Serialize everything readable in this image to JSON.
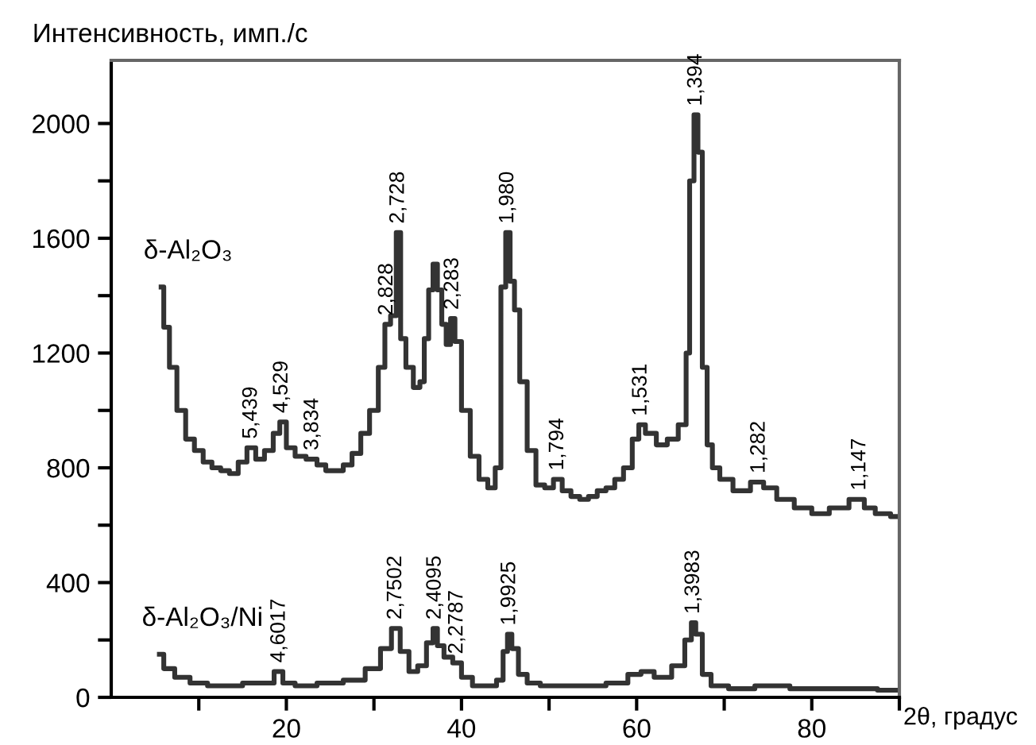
{
  "chart_data": {
    "type": "step",
    "ylabel": "Интенсивность, имп./с",
    "xlabel": "2θ, градус",
    "xlim": [
      0,
      90
    ],
    "ylim": [
      0,
      2220
    ],
    "xticks": [
      {
        "value": 10,
        "label": null
      },
      20,
      {
        "value": 30,
        "label": null
      },
      40,
      {
        "value": 50,
        "label": null
      },
      60,
      {
        "value": 70,
        "label": null
      },
      80,
      {
        "value": 90,
        "label": null
      }
    ],
    "yticks": [
      0,
      {
        "value": 200,
        "label": null
      },
      400,
      {
        "value": 600,
        "label": null
      },
      800,
      {
        "value": 1000,
        "label": null
      },
      1200,
      {
        "value": 1400,
        "label": null
      },
      1600,
      {
        "value": 1800,
        "label": null
      },
      2000
    ],
    "grid": false,
    "legend": false,
    "marker": "none",
    "line_style": "solid",
    "series": [
      {
        "name": "δ-Al₂O₃",
        "color": "#333333",
        "x": [
          5.7,
          6.3,
          7,
          8,
          9,
          10,
          11,
          12,
          13,
          14,
          15,
          16,
          17,
          18,
          19,
          19.5,
          20.5,
          21.5,
          23,
          24,
          25,
          26,
          27,
          28,
          29,
          30,
          31,
          31.5,
          32.3,
          32.8,
          33.3,
          34,
          35,
          35.5,
          36,
          36.5,
          37,
          37.5,
          38,
          38.5,
          39,
          39.5,
          40.5,
          41.5,
          42.5,
          43.5,
          44.2,
          44.8,
          45.3,
          45.8,
          46.3,
          47,
          48,
          49,
          50,
          51,
          52,
          53,
          54,
          55,
          56,
          57,
          58,
          59,
          60,
          60.5,
          61.5,
          63,
          64,
          65.5,
          65.8,
          66.3,
          66.8,
          67.2,
          67.8,
          68.3,
          69,
          70,
          72,
          74,
          75,
          77,
          79,
          81,
          83,
          85.5,
          86.5,
          88,
          90
        ],
        "values": [
          1430,
          1290,
          1150,
          1000,
          900,
          860,
          820,
          800,
          790,
          780,
          820,
          870,
          830,
          860,
          920,
          960,
          870,
          840,
          830,
          810,
          790,
          790,
          810,
          850,
          920,
          1000,
          1150,
          1300,
          1330,
          1620,
          1250,
          1150,
          1080,
          1100,
          1250,
          1420,
          1510,
          1420,
          1300,
          1230,
          1320,
          1240,
          1000,
          840,
          760,
          730,
          800,
          1430,
          1620,
          1450,
          1350,
          1100,
          860,
          740,
          730,
          760,
          720,
          700,
          690,
          700,
          720,
          730,
          760,
          800,
          900,
          950,
          920,
          880,
          900,
          950,
          1200,
          1800,
          2030,
          1900,
          1150,
          880,
          800,
          760,
          720,
          750,
          730,
          690,
          660,
          640,
          660,
          690,
          660,
          640,
          630
        ]
      },
      {
        "name": "δ-Al₂O₃/Ni",
        "color": "#333333",
        "x": [
          5.5,
          6.5,
          8,
          10,
          12,
          14,
          16,
          18,
          19.2,
          20,
          22,
          25,
          28,
          30,
          31.5,
          32.5,
          33.5,
          34.5,
          35.5,
          36.5,
          37,
          37.5,
          38.5,
          39.5,
          40.5,
          42,
          43.5,
          44.5,
          45,
          45.5,
          46,
          47,
          48,
          50,
          55,
          58,
          60,
          61,
          63,
          65,
          66,
          66.5,
          67,
          68,
          69,
          72,
          75,
          80,
          85,
          90
        ],
        "values": [
          150,
          100,
          70,
          50,
          40,
          40,
          50,
          50,
          90,
          50,
          40,
          50,
          60,
          100,
          170,
          240,
          160,
          90,
          110,
          190,
          240,
          180,
          140,
          120,
          70,
          40,
          40,
          60,
          160,
          220,
          170,
          80,
          50,
          40,
          40,
          50,
          80,
          90,
          70,
          110,
          200,
          260,
          220,
          80,
          40,
          30,
          40,
          30,
          30,
          25
        ]
      }
    ],
    "annotations": [
      {
        "text": "5,439",
        "x": 16,
        "y": 870
      },
      {
        "text": "4,529",
        "x": 19.5,
        "y": 960
      },
      {
        "text": "3,834",
        "x": 23,
        "y": 830
      },
      {
        "text": "2,828",
        "x": 31.5,
        "y": 1300
      },
      {
        "text": "2,728",
        "x": 32.8,
        "y": 1620
      },
      {
        "text": "2,283",
        "x": 39,
        "y": 1320
      },
      {
        "text": "1,980",
        "x": 45.3,
        "y": 1620
      },
      {
        "text": "1,794",
        "x": 51,
        "y": 760
      },
      {
        "text": "1,531",
        "x": 60.5,
        "y": 950
      },
      {
        "text": "1,394",
        "x": 66.8,
        "y": 2030
      },
      {
        "text": "1,282",
        "x": 74,
        "y": 750
      },
      {
        "text": "1,147",
        "x": 85.5,
        "y": 690
      },
      {
        "text": "4,6017",
        "x": 19.2,
        "y": 90
      },
      {
        "text": "2,7502",
        "x": 32.5,
        "y": 240
      },
      {
        "text": "2,4095",
        "x": 37,
        "y": 240
      },
      {
        "text": "2,2787",
        "x": 39.5,
        "y": 120
      },
      {
        "text": "1,9925",
        "x": 45.5,
        "y": 220
      },
      {
        "text": "1,3983",
        "x": 66.5,
        "y": 260
      }
    ]
  }
}
